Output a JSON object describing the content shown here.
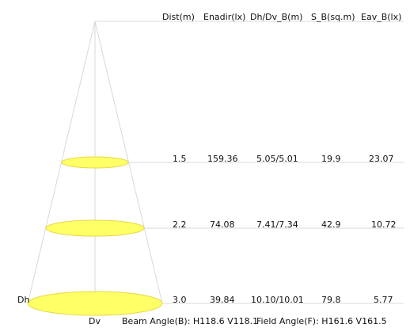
{
  "columns": [
    "Dist(m)",
    "Enadir(lx)",
    "Dh/Dv_B(m)",
    "S_B(sq.m)",
    "Eav_B(lx)"
  ],
  "rows": [
    {
      "dist": "1.5",
      "enadir": "159.36",
      "dhdv": "5.05/5.01",
      "sb": "19.9",
      "eav": "23.07"
    },
    {
      "dist": "2.2",
      "enadir": "74.08",
      "dhdv": "7.41/7.34",
      "sb": "42.9",
      "eav": "10.72"
    },
    {
      "dist": "3.0",
      "enadir": "39.84",
      "dhdv": "10.10/10.01",
      "sb": "79.8",
      "eav": "5.77"
    }
  ],
  "labels": {
    "dh": "Dh",
    "dv": "Dv"
  },
  "footer": {
    "beam_angle": "Beam Angle(B): H118.6 V118.1",
    "field_angle": "Field Angle(F): H161.6 V161.5"
  },
  "colors": {
    "ellipse_fill": "#ffff66",
    "ellipse_stroke": "#e6d84a",
    "line": "#d9d9d9"
  }
}
